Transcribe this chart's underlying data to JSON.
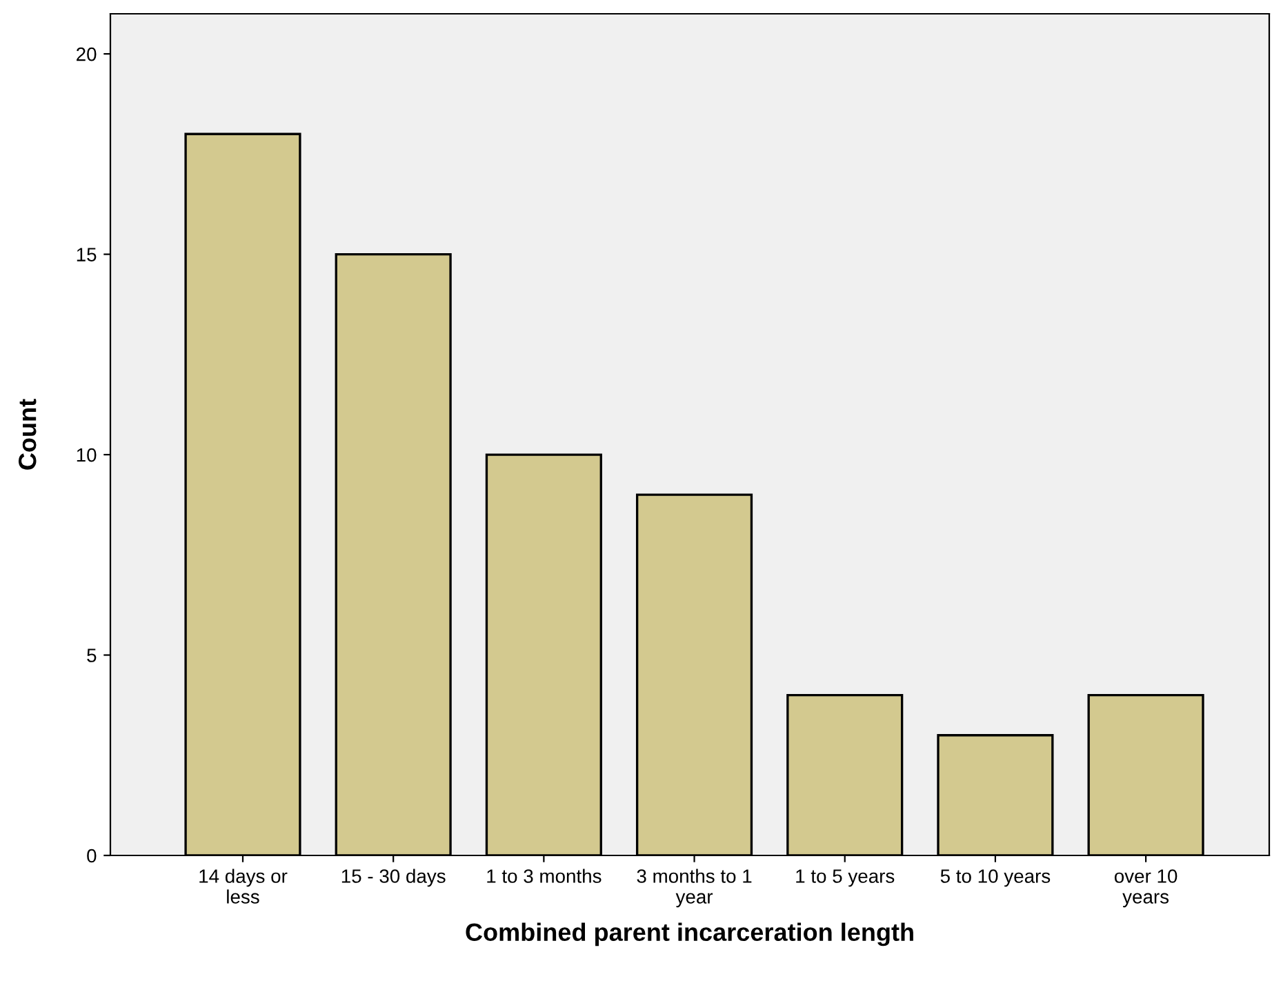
{
  "chart_data": {
    "type": "bar",
    "categories": [
      "14 days or\nless",
      "15 - 30 days",
      "1 to 3 months",
      "3 months to 1\nyear",
      "1 to 5 years",
      "5 to 10 years",
      "over 10\nyears"
    ],
    "values": [
      18,
      15,
      10,
      9,
      4,
      3,
      4
    ],
    "color": "#d3c98f",
    "xlabel": "Combined parent incarceration length",
    "ylabel": "Count",
    "ylim": [
      0,
      21
    ],
    "yticks": [
      0,
      5,
      10,
      15,
      20
    ],
    "grid": false
  }
}
